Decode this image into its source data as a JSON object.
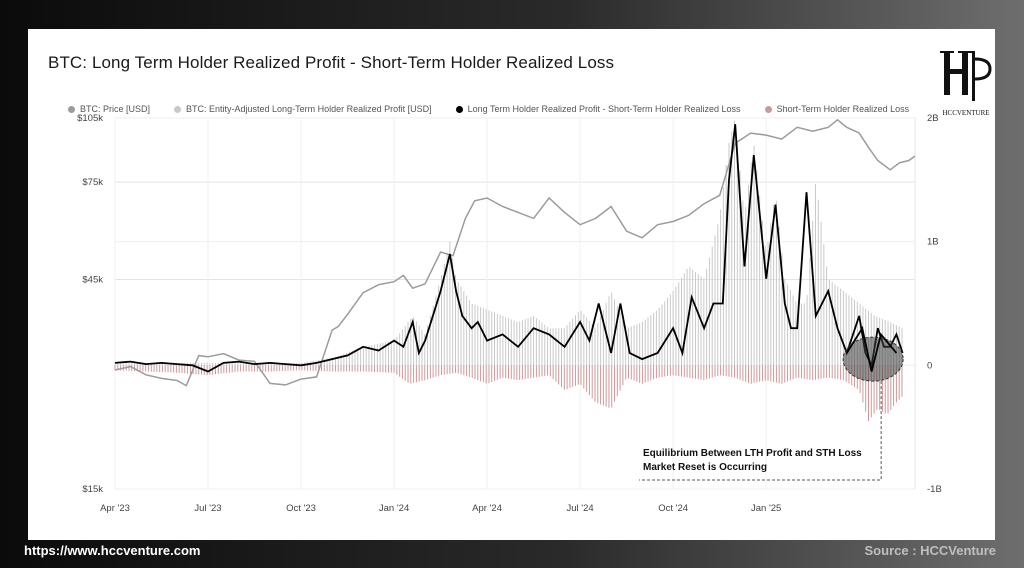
{
  "footer": {
    "url": "https://www.hccventure.com",
    "source": "Source : HCCVenture"
  },
  "logo": {
    "text": "HCCVENTURE"
  },
  "colors": {
    "price": "#9b9b9b",
    "lth": "#c8c8c8",
    "net": "#000000",
    "sth": "#c99a9a"
  },
  "chart_data": {
    "type": "line",
    "title": "BTC: Long Term Holder Realized Profit - Short-Term Holder Realized Loss",
    "legend": [
      "BTC: Price [USD]",
      "BTC: Entity-Adjusted Long-Term Holder Realized Profit [USD]",
      "Long Term Holder Realized Profit - Short-Term Holder Realized Loss",
      "Short-Term Holder Realized Loss"
    ],
    "legend_placement": "top",
    "x_ticks": [
      "Apr '23",
      "Jul '23",
      "Oct '23",
      "Jan '24",
      "Apr '24",
      "Jul '24",
      "Oct '24",
      "Jan '25"
    ],
    "x_tick_positions": [
      0,
      3,
      6,
      9,
      12,
      15,
      18,
      21
    ],
    "xlim": [
      0,
      25.8
    ],
    "y_left_ticks": [
      "$15k",
      "$45k",
      "$75k",
      "$105k"
    ],
    "y_left_values": [
      15000,
      45000,
      75000,
      105000
    ],
    "y_left_scale": "log",
    "y_left_lim": [
      15000,
      105000
    ],
    "y_right_ticks": [
      "-1B",
      "0",
      "1B",
      "2B"
    ],
    "y_right_values": [
      -1,
      0,
      1,
      2
    ],
    "y_right_lim": [
      -1,
      2
    ],
    "grid": true,
    "series": [
      {
        "name": "BTC: Price [USD]",
        "axis": "left",
        "x": [
          0,
          0.5,
          1,
          1.5,
          2,
          2.3,
          2.7,
          3,
          3.5,
          4,
          4.5,
          5,
          5.5,
          6,
          6.5,
          7,
          7.2,
          7.5,
          8,
          8.5,
          9,
          9.3,
          9.6,
          10,
          10.5,
          10.9,
          11.3,
          11.6,
          12,
          12.5,
          13,
          13.5,
          14,
          14.5,
          15,
          15.5,
          16,
          16.5,
          17,
          17.5,
          18,
          18.5,
          19,
          19.5,
          20,
          20.5,
          21,
          21.5,
          22,
          22.5,
          23,
          23.3,
          23.6,
          24,
          24.3,
          24.6,
          25,
          25.3,
          25.6,
          25.8
        ],
        "y": [
          28000,
          28500,
          27300,
          26800,
          26500,
          25800,
          30200,
          30000,
          30500,
          29500,
          29300,
          26100,
          25900,
          26700,
          27000,
          34500,
          35200,
          37500,
          42000,
          43800,
          44500,
          46000,
          43000,
          44000,
          52000,
          51000,
          62000,
          68000,
          69000,
          66000,
          64000,
          62000,
          69000,
          64000,
          60000,
          62000,
          66000,
          58000,
          56000,
          60000,
          61000,
          63000,
          67000,
          70000,
          92000,
          97000,
          96000,
          94000,
          100000,
          98000,
          100000,
          104000,
          100000,
          97000,
          90000,
          84000,
          80000,
          83000,
          84000,
          86000
        ]
      },
      {
        "name": "Long Term Holder Realized Profit - Short-Term Holder Realized Loss",
        "axis": "right",
        "x": [
          0,
          0.5,
          1,
          1.5,
          2,
          2.5,
          3,
          3.5,
          4,
          4.5,
          5,
          5.5,
          6,
          6.5,
          7,
          7.5,
          8,
          8.5,
          9,
          9.3,
          9.6,
          9.8,
          10,
          10.5,
          10.8,
          11,
          11.2,
          11.5,
          11.7,
          12,
          12.5,
          13,
          13.5,
          14,
          14.5,
          15,
          15.3,
          15.6,
          16,
          16.3,
          16.6,
          17,
          17.5,
          18,
          18.3,
          18.6,
          19,
          19.3,
          19.6,
          19.8,
          20,
          20.3,
          20.6,
          21,
          21.3,
          21.6,
          21.8,
          22,
          22.3,
          22.6,
          23,
          23.3,
          23.6,
          24,
          24.2,
          24.4,
          24.6,
          24.8,
          25,
          25.2,
          25.4
        ],
        "y": [
          0.02,
          0.03,
          0.01,
          0.02,
          0.01,
          0.0,
          -0.05,
          0.02,
          0.03,
          0.01,
          0.02,
          0.01,
          0.0,
          0.02,
          0.05,
          0.08,
          0.15,
          0.12,
          0.2,
          0.15,
          0.35,
          0.1,
          0.2,
          0.6,
          0.9,
          0.6,
          0.4,
          0.3,
          0.35,
          0.2,
          0.25,
          0.15,
          0.3,
          0.25,
          0.15,
          0.35,
          0.2,
          0.5,
          0.1,
          0.5,
          0.1,
          0.05,
          0.1,
          0.3,
          0.1,
          0.55,
          0.3,
          0.5,
          0.5,
          1.5,
          1.95,
          0.8,
          1.7,
          0.7,
          1.3,
          0.5,
          0.3,
          0.3,
          1.4,
          0.4,
          0.6,
          0.3,
          0.1,
          0.4,
          0.1,
          0.0,
          0.3,
          0.15,
          0.15,
          0.25,
          0.1
        ]
      },
      {
        "name": "BTC: Entity-Adjusted Long-Term Holder Realized Profit [USD]",
        "axis": "right",
        "x": [
          0,
          2,
          4,
          6,
          7,
          8,
          9,
          9.6,
          10,
          10.5,
          10.8,
          11,
          11.5,
          12,
          12.5,
          13,
          13.5,
          14,
          14.5,
          15,
          15.5,
          16,
          16.5,
          17,
          17.5,
          18,
          18.5,
          19,
          19.5,
          19.8,
          20,
          20.3,
          20.6,
          21,
          21.3,
          21.6,
          22,
          22.3,
          22.6,
          23,
          23.5,
          24,
          24.5,
          25,
          25.4
        ],
        "y": [
          0.02,
          0.02,
          0.02,
          0.02,
          0.06,
          0.15,
          0.2,
          0.4,
          0.25,
          0.7,
          1.0,
          0.7,
          0.5,
          0.45,
          0.4,
          0.35,
          0.4,
          0.3,
          0.3,
          0.45,
          0.3,
          0.6,
          0.3,
          0.35,
          0.45,
          0.6,
          0.8,
          0.7,
          1.2,
          1.8,
          2.0,
          1.2,
          1.8,
          0.9,
          1.4,
          0.7,
          0.5,
          0.5,
          1.5,
          0.7,
          0.6,
          0.5,
          0.4,
          0.35,
          0.3
        ]
      },
      {
        "name": "Short-Term Holder Realized Loss",
        "axis": "right",
        "x": [
          0,
          1,
          2,
          3,
          4,
          5,
          6,
          7,
          8,
          9,
          9.5,
          10,
          10.5,
          11,
          11.5,
          12,
          12.5,
          13,
          13.5,
          14,
          14.5,
          15,
          15.5,
          16,
          16.5,
          17,
          17.5,
          18,
          18.5,
          19,
          19.5,
          20,
          20.5,
          21,
          21.5,
          22,
          22.5,
          23,
          23.5,
          24,
          24.3,
          24.6,
          24.9,
          25.2,
          25.4
        ],
        "y": [
          -0.04,
          -0.05,
          -0.06,
          -0.08,
          -0.05,
          -0.05,
          -0.04,
          -0.05,
          -0.05,
          -0.06,
          -0.15,
          -0.12,
          -0.08,
          -0.06,
          -0.1,
          -0.15,
          -0.1,
          -0.12,
          -0.1,
          -0.08,
          -0.2,
          -0.15,
          -0.3,
          -0.35,
          -0.1,
          -0.15,
          -0.1,
          -0.08,
          -0.1,
          -0.12,
          -0.08,
          -0.1,
          -0.15,
          -0.12,
          -0.15,
          -0.1,
          -0.12,
          -0.1,
          -0.12,
          -0.2,
          -0.45,
          -0.35,
          -0.4,
          -0.3,
          -0.25
        ]
      }
    ],
    "annotations": [
      "Equilibrium Between LTH Profit and STH Loss",
      "Market Reset is Occurring"
    ]
  }
}
